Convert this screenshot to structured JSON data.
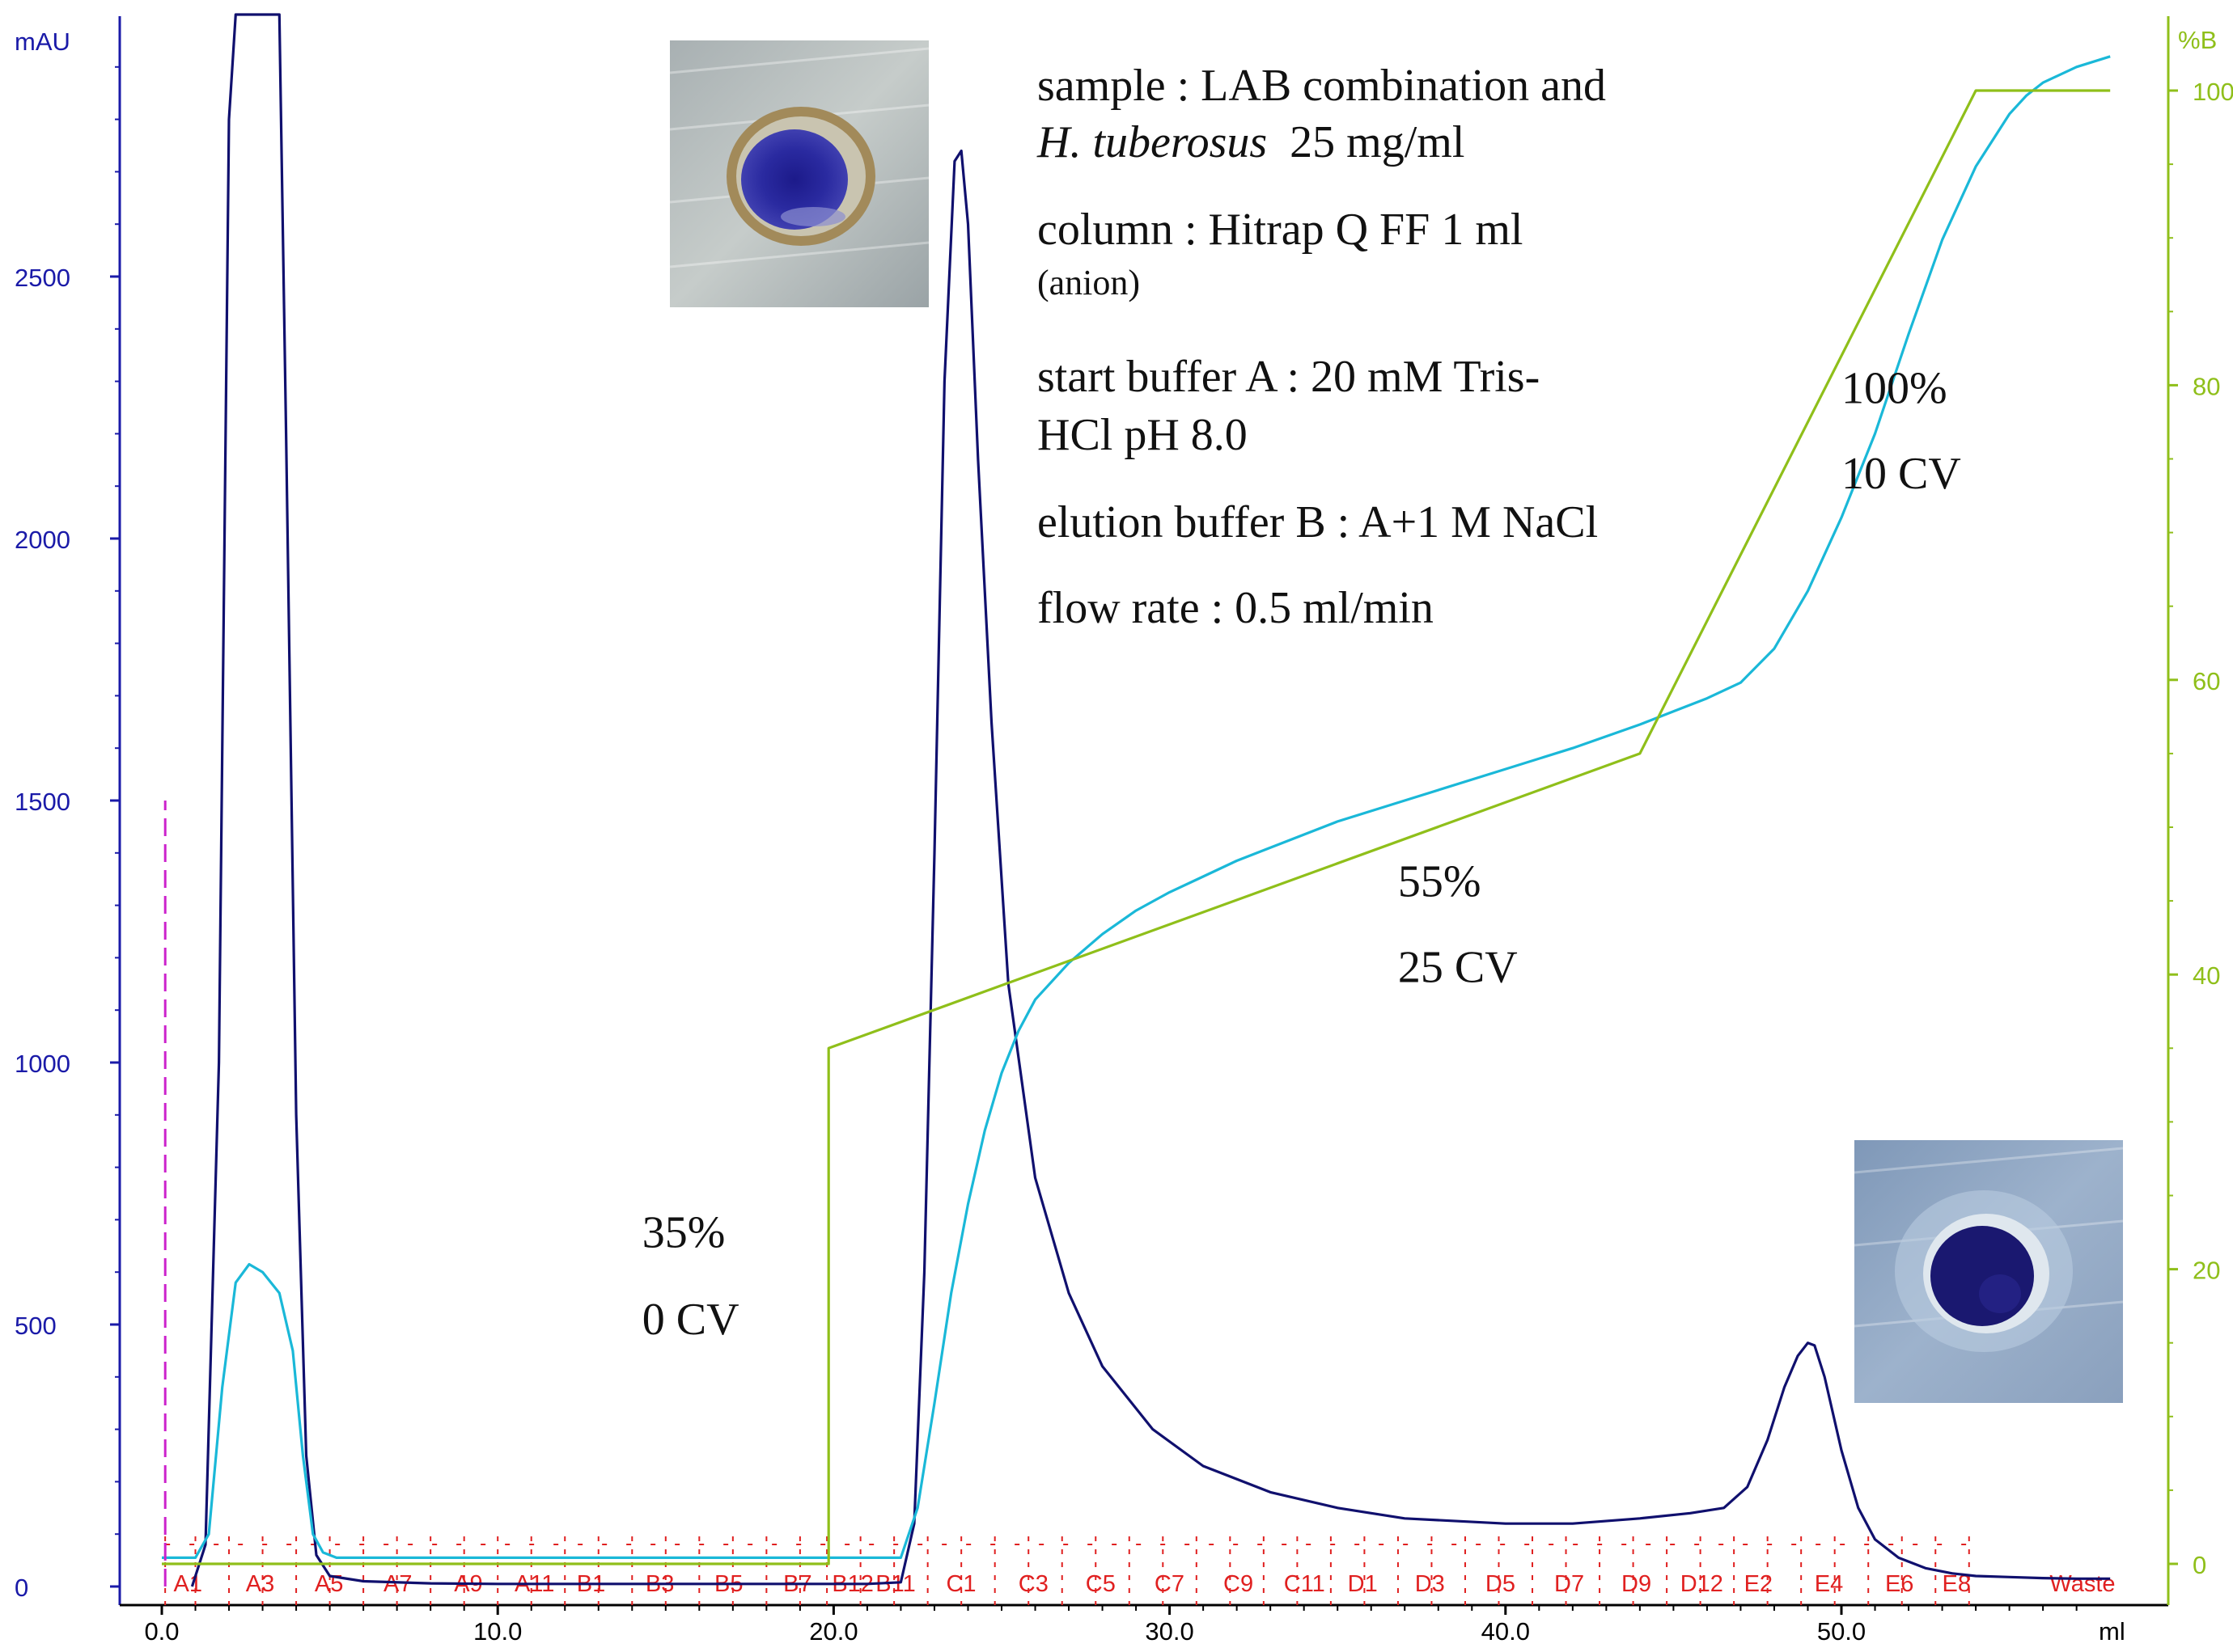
{
  "chart_data": {
    "type": "line",
    "x_axis": {
      "unit_label": "ml",
      "range": [
        0,
        58
      ],
      "ticks": [
        0,
        10,
        20,
        30,
        40,
        50
      ],
      "tick_labels": [
        "0.0",
        "10.0",
        "20.0",
        "30.0",
        "40.0",
        "50.0"
      ]
    },
    "y_axis_left": {
      "unit_label": "mAU",
      "range": [
        0,
        3000
      ],
      "ticks": [
        0,
        500,
        1000,
        1500,
        2000,
        2500
      ],
      "tick_labels": [
        "0",
        "500",
        "1000",
        "1500",
        "2000",
        "2500"
      ],
      "color": "#1a1aa8"
    },
    "y_axis_right": {
      "unit_label": "%B",
      "range": [
        0,
        105
      ],
      "ticks": [
        0,
        20,
        40,
        60,
        80,
        100
      ],
      "tick_labels": [
        "0",
        "20",
        "40",
        "60",
        "80",
        "100"
      ],
      "color": "#8fbf1a"
    },
    "series": [
      {
        "id": "uv",
        "axis": "left",
        "color": "#10106e",
        "x": [
          0.9,
          1.3,
          1.7,
          2.0,
          2.2,
          3.5,
          3.7,
          4.0,
          4.3,
          4.6,
          5.0,
          6.0,
          8.0,
          10.0,
          15.0,
          20.0,
          21.0,
          22.0,
          22.4,
          22.7,
          23.0,
          23.3,
          23.6,
          23.8,
          24.0,
          24.3,
          24.7,
          25.2,
          26.0,
          27.0,
          28.0,
          29.5,
          31.0,
          33.0,
          35.0,
          37.0,
          40.0,
          42.0,
          44.0,
          45.5,
          46.5,
          47.2,
          47.8,
          48.3,
          48.7,
          49.0,
          49.2,
          49.5,
          50.0,
          50.5,
          51.0,
          51.7,
          52.5,
          53.3,
          54.0,
          55.0,
          56.0,
          57.0,
          58.0
        ],
        "values": [
          0,
          80,
          1000,
          2800,
          3000,
          3000,
          2200,
          900,
          250,
          60,
          20,
          10,
          6,
          5,
          5,
          5,
          5,
          8,
          120,
          600,
          1400,
          2300,
          2720,
          2740,
          2600,
          2150,
          1650,
          1150,
          780,
          560,
          420,
          300,
          230,
          180,
          150,
          130,
          120,
          120,
          130,
          140,
          150,
          190,
          280,
          380,
          440,
          465,
          460,
          400,
          260,
          150,
          90,
          55,
          35,
          25,
          20,
          18,
          16,
          15,
          15
        ]
      },
      {
        "id": "conductivity",
        "axis": "left",
        "color": "#1ab8d8",
        "x": [
          0,
          1.0,
          1.4,
          1.8,
          2.2,
          2.6,
          3.0,
          3.5,
          3.9,
          4.2,
          4.5,
          4.8,
          5.2,
          6.0,
          10.0,
          15.0,
          20.0,
          21.0,
          22.0,
          22.5,
          23.0,
          23.5,
          24.0,
          24.5,
          25.0,
          25.5,
          26.0,
          27.0,
          28.0,
          29.0,
          30.0,
          31.0,
          32.0,
          33.0,
          35.0,
          37.0,
          40.0,
          42.0,
          44.0,
          45.0,
          46.0,
          47.0,
          48.0,
          49.0,
          50.0,
          51.0,
          52.0,
          53.0,
          54.0,
          55.0,
          55.5,
          56.0,
          57.0,
          58.0
        ],
        "values": [
          55,
          55,
          100,
          380,
          580,
          615,
          600,
          560,
          450,
          250,
          100,
          65,
          55,
          55,
          55,
          55,
          55,
          55,
          55,
          150,
          350,
          560,
          730,
          870,
          980,
          1060,
          1120,
          1190,
          1245,
          1290,
          1325,
          1355,
          1385,
          1410,
          1460,
          1500,
          1560,
          1600,
          1645,
          1670,
          1695,
          1725,
          1790,
          1900,
          2040,
          2200,
          2390,
          2570,
          2710,
          2810,
          2845,
          2870,
          2900,
          2920
        ]
      },
      {
        "id": "percent_b",
        "axis": "right",
        "color": "#8fbf1a",
        "x": [
          0,
          19.85,
          19.85,
          44.0,
          54.0,
          58.0
        ],
        "values": [
          0,
          0,
          35,
          55,
          100,
          100
        ]
      },
      {
        "id": "injection",
        "axis": "left",
        "color": "#cc22cc",
        "x": [
          0.1,
          0.1
        ],
        "values": [
          0,
          1500
        ]
      }
    ],
    "fractions": {
      "color": "#e02020",
      "labels": [
        "A1",
        "A3",
        "A5",
        "A7",
        "A9",
        "A11",
        "B1",
        "B3",
        "B5",
        "B7",
        "B12",
        "B11",
        "C1",
        "C3",
        "C5",
        "C7",
        "C9",
        "C11",
        "D1",
        "D3",
        "D5",
        "D7",
        "D9",
        "D12",
        "E2",
        "E4",
        "E6",
        "E8",
        "Waste"
      ],
      "label_x": [
        0.35,
        2.5,
        4.55,
        6.6,
        8.7,
        10.5,
        12.35,
        14.4,
        16.45,
        18.5,
        19.95,
        21.25,
        23.35,
        25.5,
        27.5,
        29.55,
        31.6,
        33.4,
        35.3,
        37.3,
        39.4,
        41.45,
        43.45,
        45.2,
        47.1,
        49.2,
        51.3,
        53.0,
        56.2
      ],
      "tick_x": [
        0.1,
        1.0,
        2.0,
        3.0,
        4.0,
        5.0,
        6.0,
        7.0,
        8.0,
        9.0,
        10.0,
        11.0,
        12.0,
        13.0,
        14.0,
        15.0,
        16.0,
        17.0,
        18.0,
        19.0,
        19.8,
        20.8,
        21.8,
        22.8,
        23.8,
        24.8,
        25.8,
        26.8,
        27.8,
        28.8,
        29.8,
        30.8,
        31.8,
        32.8,
        33.8,
        34.8,
        35.8,
        36.8,
        37.8,
        38.8,
        39.8,
        40.8,
        41.8,
        42.8,
        43.8,
        44.8,
        45.8,
        46.8,
        47.8,
        48.8,
        49.8,
        50.8,
        51.8,
        52.8,
        53.8
      ]
    },
    "annotations": [
      {
        "id": "step1-pct",
        "text": "35%",
        "x": 14.3,
        "pct_b": 21.5
      },
      {
        "id": "step1-cv",
        "text": "0 CV",
        "x": 14.3,
        "pct_b": 15.6
      },
      {
        "id": "step2-pct",
        "text": "55%",
        "x": 36.8,
        "pct_b": 45.3
      },
      {
        "id": "step2-cv",
        "text": "25 CV",
        "x": 36.8,
        "pct_b": 39.5
      },
      {
        "id": "step3-pct",
        "text": "100%",
        "x": 50.0,
        "pct_b": 78.8
      },
      {
        "id": "step3-cv",
        "text": "10 CV",
        "x": 50.0,
        "pct_b": 73.0
      }
    ]
  },
  "info_box": {
    "sample_line1": "sample : LAB combination and",
    "sample_line2_italic": "H. tuberosus",
    "sample_line2_rest": "  25 mg/ml",
    "column_line1": "column : Hitrap Q FF 1 ml",
    "column_line2": "(anion)",
    "buffer_a_line1": "start buffer A : 20 mM Tris-",
    "buffer_a_line2": "HCl pH 8.0",
    "buffer_b": "elution buffer B : A+1 M NaCl",
    "flow_rate": "flow rate : 0.5 ml/min"
  },
  "photos": {
    "top_left": "agar-well-inhibition-photo",
    "bottom_right": "agar-well-inhibition-photo"
  }
}
